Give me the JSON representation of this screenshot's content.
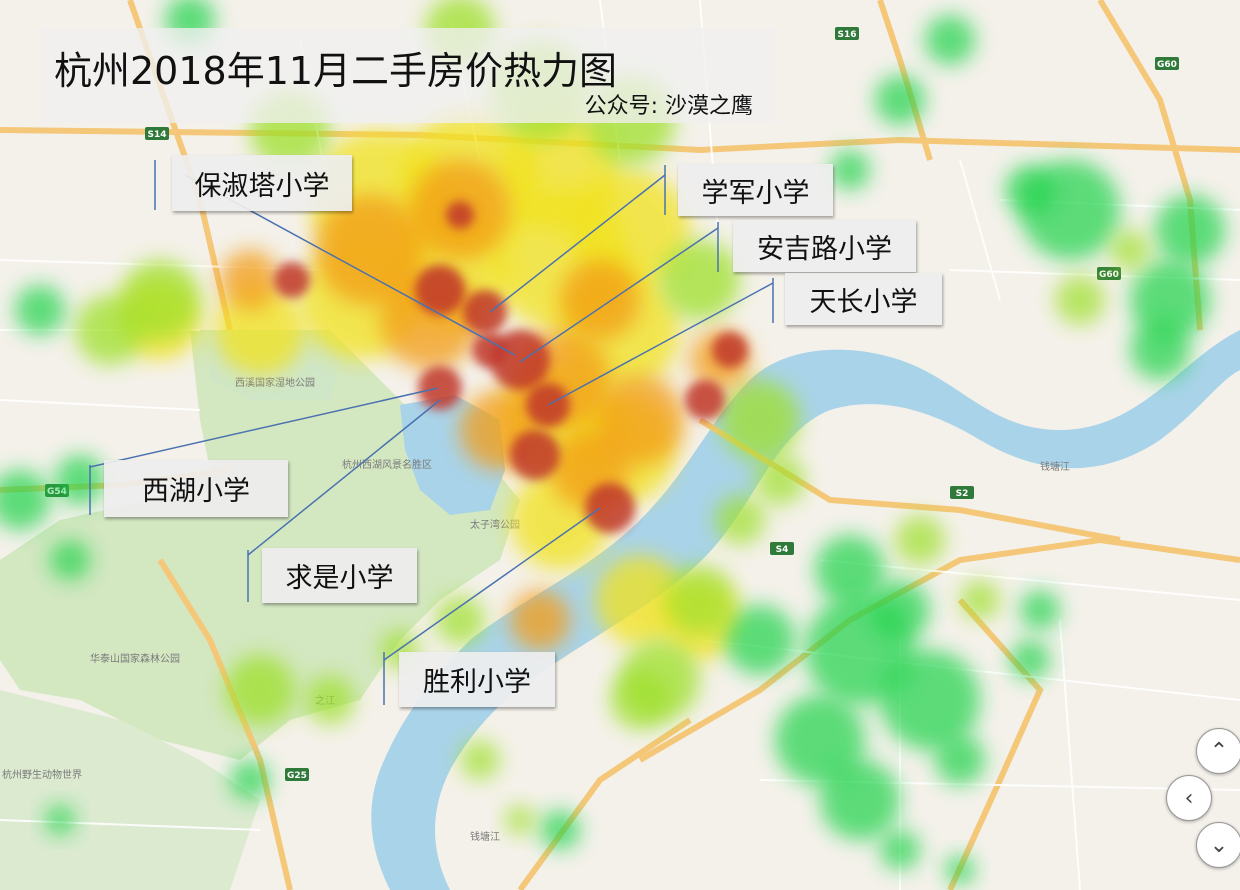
{
  "header": {
    "title": "杭州2018年11月二手房价热力图",
    "subtitle": "公众号: 沙漠之鹰"
  },
  "schools": [
    {
      "name": "保淑塔小学"
    },
    {
      "name": "学军小学"
    },
    {
      "name": "安吉路小学"
    },
    {
      "name": "天长小学"
    },
    {
      "name": "西湖小学"
    },
    {
      "name": "求是小学"
    },
    {
      "name": "胜利小学"
    }
  ],
  "map": {
    "places": [
      "西溪国家湿地公园",
      "杭州西湖风景名胜区",
      "太子湾公园",
      "华泰山国家森林公园",
      "杭州野生动物世界",
      "钱塘江",
      "钱塘江",
      "之江"
    ],
    "road_shields": [
      "S14",
      "G54",
      "G25",
      "S2",
      "S4",
      "G60",
      "S16",
      "G60"
    ]
  },
  "controls": {
    "up_icon": "chevron-up-icon",
    "left_icon": "chevron-left-icon",
    "down_icon": "chevron-down-icon"
  },
  "colors": {
    "high": "#c0392b",
    "mid": "#f39c12",
    "low": "#f1e21a",
    "lower": "#9ee02a",
    "lowest": "#1fd34a",
    "water": "#a9d3e9",
    "park": "#d3e7c1"
  }
}
